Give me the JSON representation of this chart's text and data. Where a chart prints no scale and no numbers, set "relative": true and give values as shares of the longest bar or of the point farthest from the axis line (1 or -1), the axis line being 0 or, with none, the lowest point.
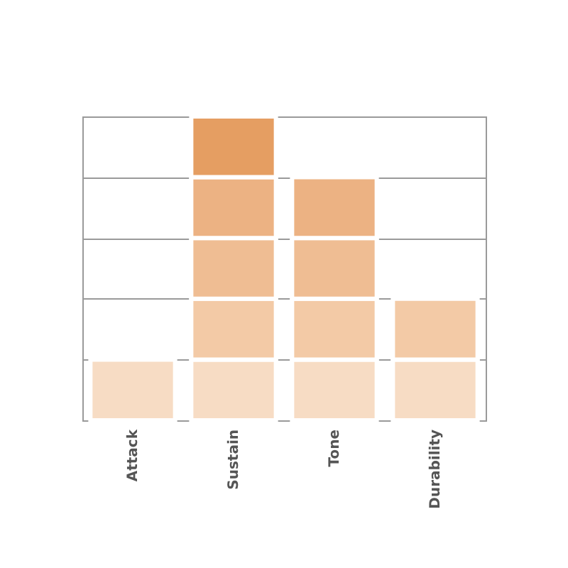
{
  "chart_data": {
    "type": "bar",
    "stacked": true,
    "relative": true,
    "categories": [
      "Attack",
      "Sustain",
      "Tone",
      "Durability"
    ],
    "series": [
      {
        "color": "#f7dcc4",
        "values": [
          0.2,
          0.2,
          0.2,
          0.2
        ]
      },
      {
        "color": "#f3caa6",
        "values": [
          null,
          0.2,
          0.2,
          0.2
        ]
      },
      {
        "color": "#efbd93",
        "values": [
          null,
          0.2,
          0.2,
          null
        ]
      },
      {
        "color": "#ecb283",
        "values": [
          null,
          0.2,
          0.2,
          null
        ]
      },
      {
        "color": "#e59e62",
        "values": [
          null,
          0.2,
          null,
          null
        ]
      }
    ],
    "grid": "y"
  }
}
